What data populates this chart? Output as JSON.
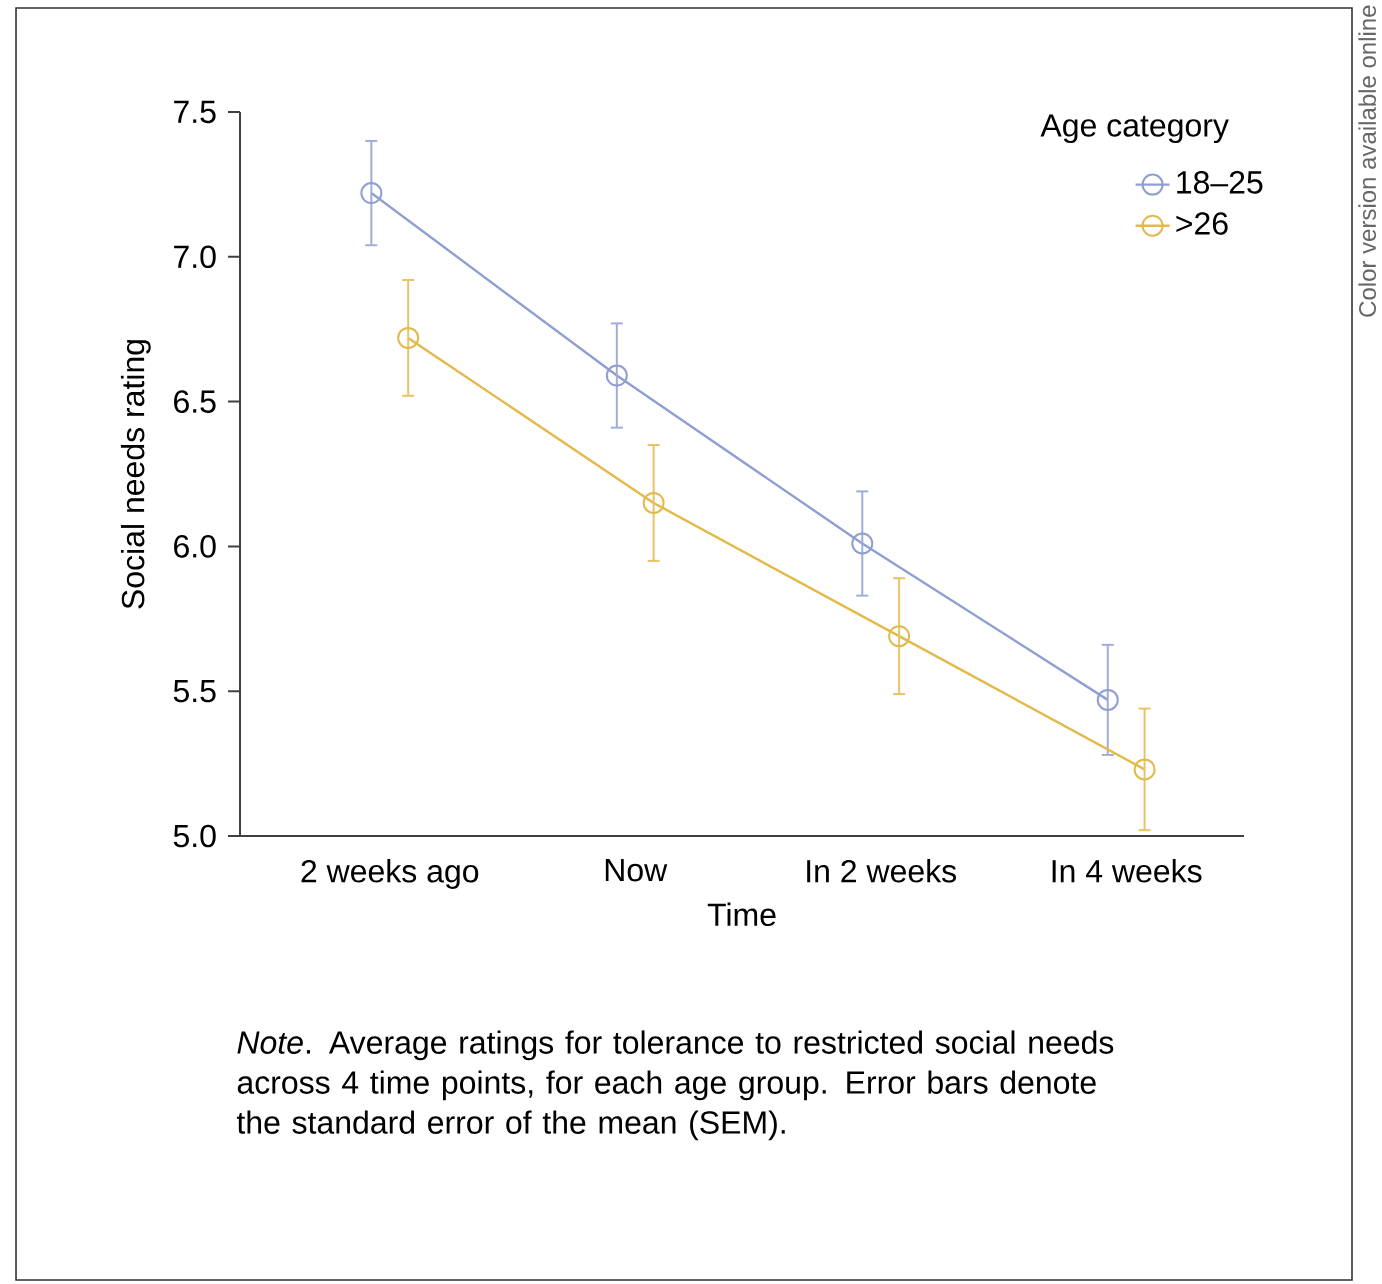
{
  "chart_data": {
    "type": "line",
    "xlabel": "Time",
    "ylabel": "Social needs rating",
    "legend_title": "Age category",
    "categories": [
      "2 weeks ago",
      "Now",
      "In 2 weeks",
      "In 4 weeks"
    ],
    "series": [
      {
        "name": "18–25",
        "color": "#8f9fd1",
        "values": [
          7.22,
          6.59,
          6.01,
          5.47
        ],
        "errors": [
          0.18,
          0.18,
          0.18,
          0.19
        ]
      },
      {
        "name": ">26",
        "color": "#e3b94a",
        "values": [
          6.72,
          6.15,
          5.69,
          5.23
        ],
        "errors": [
          0.2,
          0.2,
          0.2,
          0.21
        ]
      }
    ],
    "ylim": [
      5.0,
      7.5
    ],
    "yticks": [
      {
        "value": 5,
        "label": "5.0"
      },
      {
        "value": 5.5,
        "label": "5.5"
      },
      {
        "value": 6,
        "label": "6.0"
      },
      {
        "value": 6.5,
        "label": "6.5"
      },
      {
        "value": 7,
        "label": "7.0"
      },
      {
        "value": 7.5,
        "label": "7.5"
      }
    ],
    "grid": false,
    "legend": "top right",
    "marker": "circle",
    "line_style": "solid",
    "annotations": [
      "*Note*. Average ratings for tolerance to restricted social needs across 4 time points, for each age group. Error bars denote the standard error of the mean (SEM).",
      "Color version available online"
    ]
  }
}
